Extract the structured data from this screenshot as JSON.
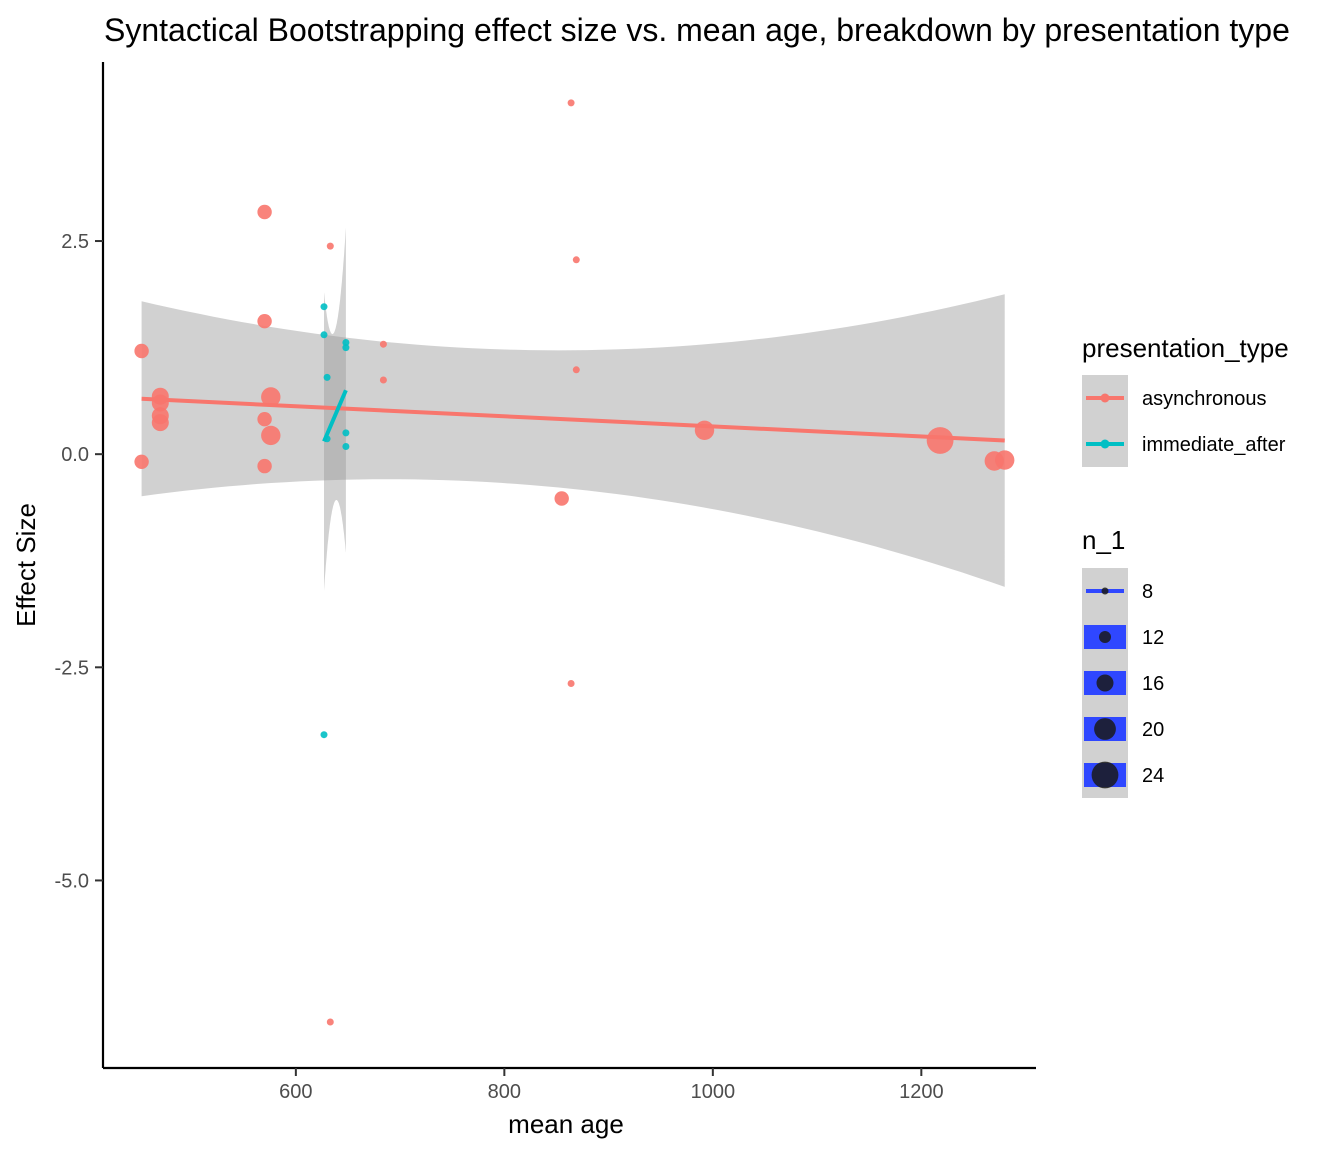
{
  "chart_data": {
    "type": "scatter",
    "title": "Syntactical Bootstrapping effect size vs. mean age, breakdown by presentation type",
    "xlabel": "mean age",
    "ylabel": "Effect Size",
    "xlim": [
      415,
      1310
    ],
    "ylim": [
      -7.2,
      4.6
    ],
    "xticks": [
      600,
      800,
      1000,
      1200
    ],
    "yticks": [
      2.5,
      0.0,
      -2.5,
      -5.0
    ],
    "ytick_labels": [
      "2.5",
      "0.0",
      "-2.5",
      "-5.0"
    ],
    "grid": false,
    "series": [
      {
        "name": "asynchronous",
        "color": "#F8766D",
        "points": [
          {
            "x": 452,
            "y": 1.21,
            "n": 14
          },
          {
            "x": 452,
            "y": -0.09,
            "n": 14
          },
          {
            "x": 470,
            "y": 0.68,
            "n": 16
          },
          {
            "x": 470,
            "y": 0.6,
            "n": 16
          },
          {
            "x": 470,
            "y": 0.45,
            "n": 16
          },
          {
            "x": 470,
            "y": 0.37,
            "n": 16
          },
          {
            "x": 570,
            "y": 2.84,
            "n": 14
          },
          {
            "x": 570,
            "y": 1.56,
            "n": 14
          },
          {
            "x": 570,
            "y": 0.41,
            "n": 14
          },
          {
            "x": 570,
            "y": -0.14,
            "n": 14
          },
          {
            "x": 576,
            "y": 0.67,
            "n": 18
          },
          {
            "x": 576,
            "y": 0.22,
            "n": 18
          },
          {
            "x": 633,
            "y": 2.44,
            "n": 8
          },
          {
            "x": 633,
            "y": -6.66,
            "n": 8
          },
          {
            "x": 684,
            "y": 1.29,
            "n": 8
          },
          {
            "x": 684,
            "y": 0.87,
            "n": 8
          },
          {
            "x": 855,
            "y": -0.52,
            "n": 14
          },
          {
            "x": 864,
            "y": 4.12,
            "n": 8
          },
          {
            "x": 864,
            "y": -2.69,
            "n": 8
          },
          {
            "x": 869,
            "y": 2.28,
            "n": 8
          },
          {
            "x": 869,
            "y": 0.99,
            "n": 8
          },
          {
            "x": 992,
            "y": 0.28,
            "n": 18
          },
          {
            "x": 1218,
            "y": 0.16,
            "n": 24
          },
          {
            "x": 1270,
            "y": -0.08,
            "n": 18
          },
          {
            "x": 1280,
            "y": -0.07,
            "n": 18
          }
        ],
        "fit": {
          "x": [
            452,
            1280
          ],
          "y": [
            0.65,
            0.16
          ]
        }
      },
      {
        "name": "immediate_after",
        "color": "#00BFC4",
        "points": [
          {
            "x": 627,
            "y": 1.73,
            "n": 8
          },
          {
            "x": 627,
            "y": 1.4,
            "n": 8
          },
          {
            "x": 627,
            "y": -3.29,
            "n": 8
          },
          {
            "x": 630,
            "y": 0.9,
            "n": 8
          },
          {
            "x": 630,
            "y": 0.18,
            "n": 8
          },
          {
            "x": 648,
            "y": 1.31,
            "n": 8
          },
          {
            "x": 648,
            "y": 1.25,
            "n": 8
          },
          {
            "x": 648,
            "y": 0.25,
            "n": 8
          },
          {
            "x": 648,
            "y": 0.09,
            "n": 8
          }
        ],
        "fit": {
          "x": [
            627,
            648
          ],
          "y": [
            0.15,
            0.75
          ]
        }
      }
    ],
    "confidence_band": "grey",
    "legend": {
      "placement": "right",
      "color_title": "presentation_type",
      "color_entries": [
        "asynchronous",
        "immediate_after"
      ],
      "size_title": "n_1",
      "size_entries": [
        8,
        12,
        16,
        20,
        24
      ],
      "size_entry_labels": [
        "8",
        "12",
        "16",
        "20",
        "24"
      ],
      "size_key_color": "#2F47FF"
    }
  }
}
